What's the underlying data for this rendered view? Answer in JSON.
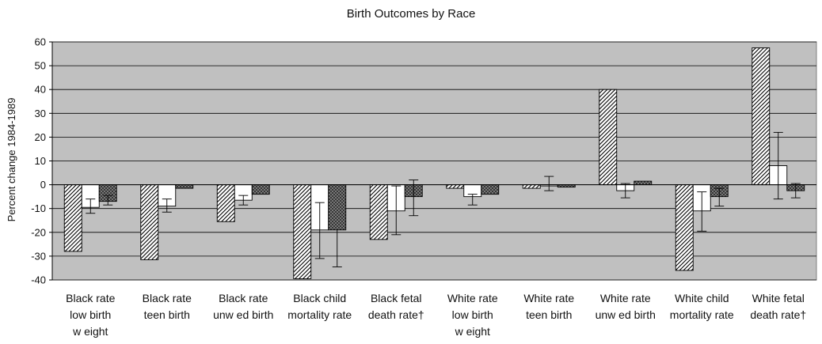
{
  "chart_data": {
    "type": "bar",
    "title": "Birth Outcomes by Race",
    "xlabel": "",
    "ylabel": "Percent change 1984-1989",
    "ylim": [
      -40,
      60
    ],
    "yticks": [
      60,
      50,
      40,
      30,
      20,
      10,
      0,
      -10,
      -20,
      -30,
      -40
    ],
    "grid": true,
    "legend": "none",
    "colors": {
      "plot_background": "#c0c0c0",
      "bar_fill": "#ffffff",
      "stroke": "#000000"
    },
    "categories": [
      [
        "Black rate",
        "low  birth",
        "w eight"
      ],
      [
        "Black rate",
        "teen birth"
      ],
      [
        "Black rate",
        "unw ed birth"
      ],
      [
        "Black child",
        "mortality rate"
      ],
      [
        "Black fetal",
        "death rate†"
      ],
      [
        "White rate",
        "low  birth",
        "w eight"
      ],
      [
        "White rate",
        "teen birth"
      ],
      [
        "White rate",
        "unw ed birth"
      ],
      [
        "White child",
        "mortality  rate"
      ],
      [
        "White fetal",
        "death rate†"
      ]
    ],
    "series": [
      {
        "pattern": "diagonal",
        "values": [
          -28,
          -31.5,
          -15.5,
          -39.5,
          -23,
          -1.5,
          -1.5,
          40,
          -36,
          57.5
        ],
        "error": [
          null,
          null,
          null,
          null,
          null,
          null,
          null,
          null,
          null,
          null
        ]
      },
      {
        "pattern": "plain",
        "values": [
          -9.5,
          -9,
          -6.5,
          -19,
          -11,
          -5,
          -0.5,
          -2.5,
          -11,
          8
        ],
        "error": [
          [
            -12,
            -6
          ],
          [
            -11.5,
            -6
          ],
          [
            -8.5,
            -4.5
          ],
          [
            -31,
            -7.5
          ],
          [
            -21,
            -0.5
          ],
          [
            -8.5,
            -4
          ],
          [
            -2.5,
            3.5
          ],
          [
            -5.5,
            0.5
          ],
          [
            -19.5,
            -3
          ],
          [
            -6,
            22
          ]
        ]
      },
      {
        "pattern": "crosshatch",
        "values": [
          -7,
          -1.5,
          -4,
          -19,
          -5,
          -4,
          -1,
          1.5,
          -5,
          -2.5
        ],
        "error": [
          [
            -8.5,
            -4.5
          ],
          null,
          null,
          [
            -34.5,
            null
          ],
          [
            -13,
            2
          ],
          null,
          null,
          null,
          [
            -9,
            -1.5
          ],
          [
            -5.5,
            0.5
          ]
        ]
      }
    ]
  }
}
